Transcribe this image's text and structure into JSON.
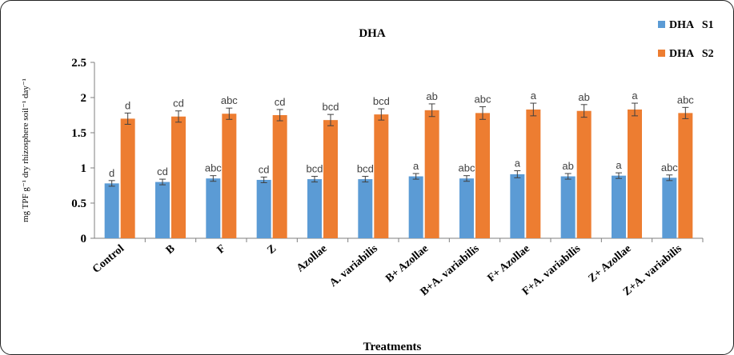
{
  "chart_data": {
    "type": "bar",
    "title": "DHA",
    "xlabel": "Treatments",
    "ylabel": "mg TPF g⁻¹ dry rhizosphere soil⁻¹ day⁻¹",
    "ylim": [
      0,
      2.5
    ],
    "yticks": [
      "0",
      "0.5",
      "1",
      "1.5",
      "2",
      "2.5"
    ],
    "grid": false,
    "legend_position": "top-right",
    "categories": [
      "Control",
      "B",
      "F",
      "Z",
      "Azollae",
      "A. variabilis",
      "B+ Azollae",
      "B+A. variabilis",
      "F+ Azollae",
      "F+A. variabilis",
      "Z+ Azollae",
      "Z+A. variabilis"
    ],
    "series": [
      {
        "name": "DHA   S1",
        "color": "#5B9BD5",
        "values": [
          0.78,
          0.8,
          0.85,
          0.83,
          0.84,
          0.84,
          0.88,
          0.85,
          0.91,
          0.88,
          0.89,
          0.86
        ],
        "errors": [
          0.04,
          0.04,
          0.04,
          0.04,
          0.04,
          0.04,
          0.04,
          0.04,
          0.05,
          0.04,
          0.04,
          0.04
        ],
        "labels": [
          "d",
          "cd",
          "abc",
          "cd",
          "bcd",
          "bcd",
          "a",
          "abc",
          "a",
          "ab",
          "a",
          "abc"
        ]
      },
      {
        "name": "DHA   S2",
        "color": "#ED7D31",
        "values": [
          1.7,
          1.73,
          1.77,
          1.75,
          1.68,
          1.76,
          1.82,
          1.78,
          1.83,
          1.81,
          1.83,
          1.78
        ],
        "errors": [
          0.08,
          0.08,
          0.08,
          0.08,
          0.08,
          0.08,
          0.09,
          0.09,
          0.09,
          0.09,
          0.09,
          0.08
        ],
        "labels": [
          "d",
          "cd",
          "abc",
          "cd",
          "bcd",
          "bcd",
          "ab",
          "abc",
          "a",
          "ab",
          "a",
          "abc"
        ]
      }
    ]
  }
}
